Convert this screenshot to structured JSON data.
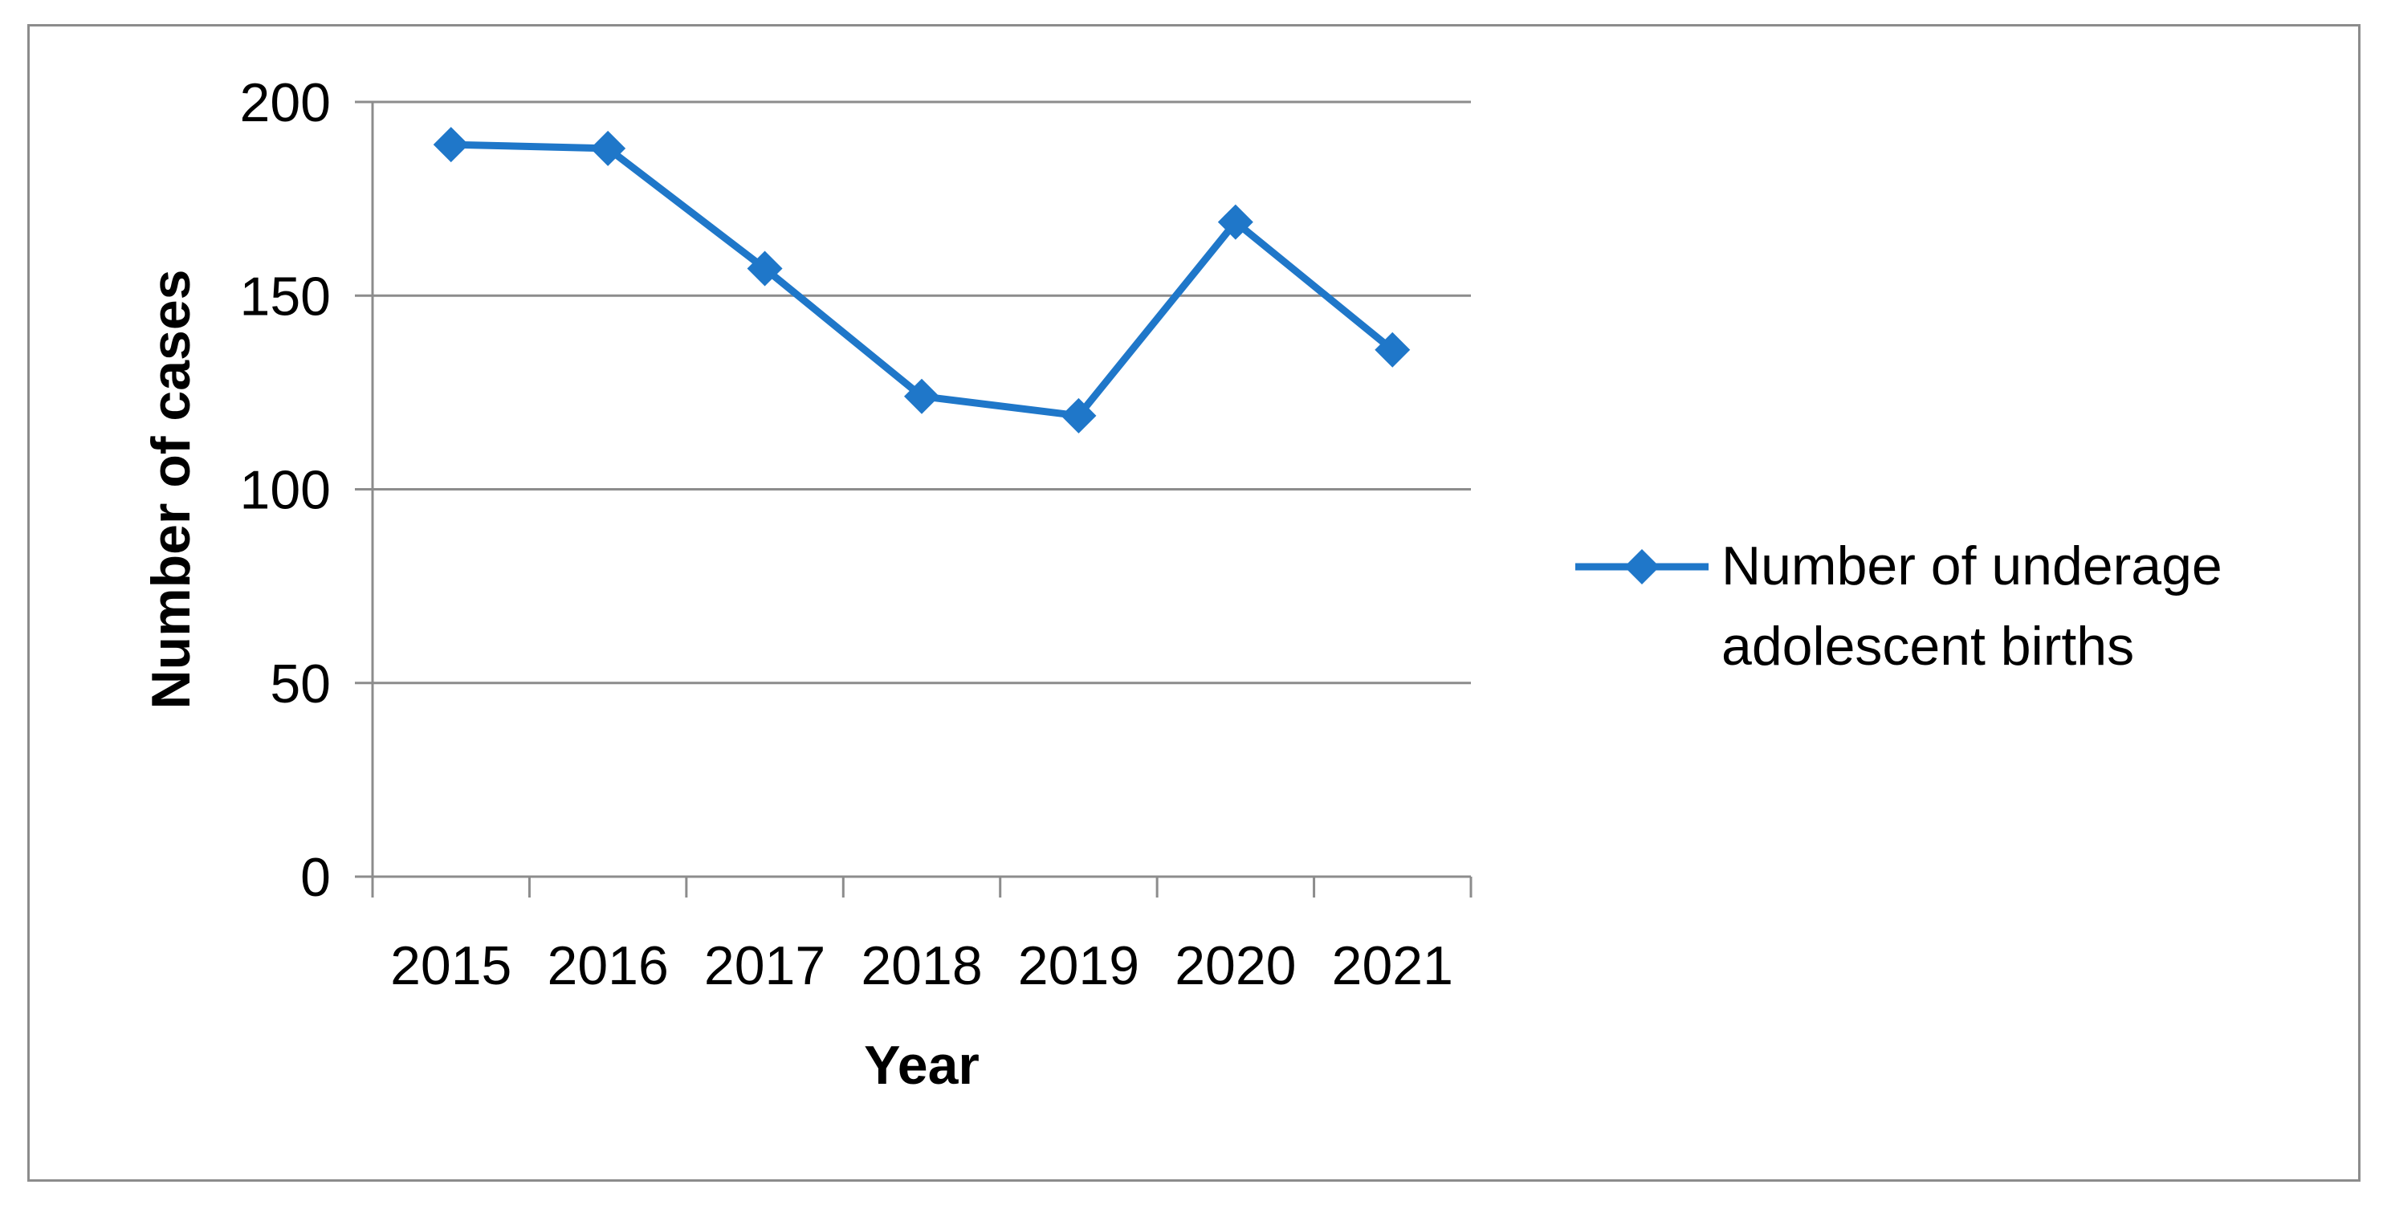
{
  "chart_data": {
    "type": "line",
    "title": "",
    "xlabel": "Year",
    "ylabel": "Number of cases",
    "categories": [
      "2015",
      "2016",
      "2017",
      "2018",
      "2019",
      "2020",
      "2021"
    ],
    "series": [
      {
        "name": "Number of underage adolescent births",
        "name_lines": [
          "Number of underage",
          "adolescent births"
        ],
        "values": [
          189,
          188,
          157,
          124,
          119,
          169,
          136
        ],
        "color": "#1f77c9",
        "marker": "diamond"
      }
    ],
    "ylim": [
      0,
      200
    ],
    "yticks": [
      0,
      50,
      100,
      150,
      200
    ],
    "grid": "horizontal",
    "legend_position": "right"
  }
}
